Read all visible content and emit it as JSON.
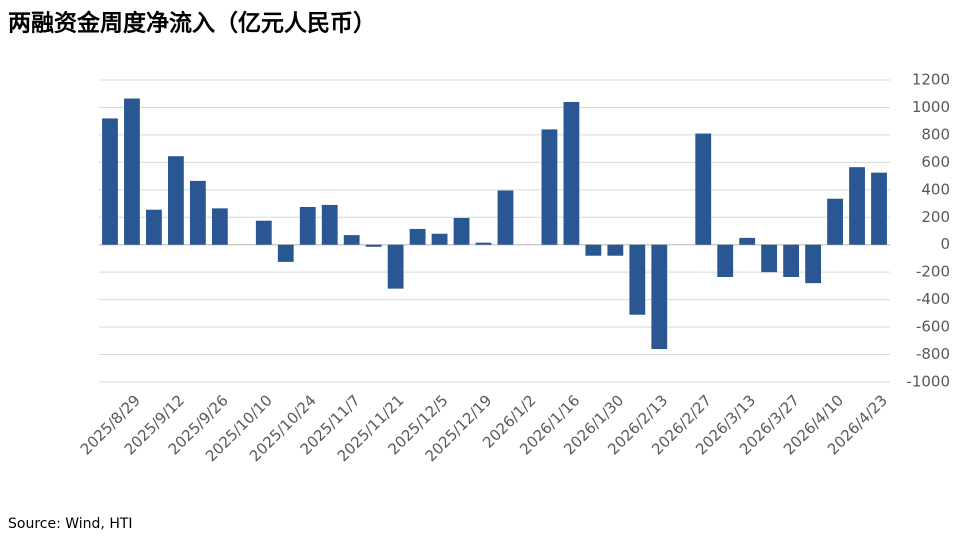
{
  "chart_data": {
    "type": "bar",
    "title": "两融资金周度净流入（亿元人民币）",
    "source": "Source: Wind, HTI",
    "categories": [
      null,
      "2025/8/29",
      null,
      "2025/9/12",
      null,
      "2025/9/26",
      null,
      "2025/10/10",
      null,
      "2025/10/24",
      null,
      "2025/11/7",
      null,
      "2025/11/21",
      null,
      "2025/12/5",
      null,
      "2025/12/19",
      null,
      "2026/1/2",
      null,
      "2026/1/16",
      null,
      "2026/1/30",
      null,
      "2026/2/13",
      null,
      "2026/2/27",
      null,
      "2026/3/13",
      null,
      "2026/3/27",
      null,
      "2026/4/10",
      null,
      "2026/4/23"
    ],
    "values": [
      920,
      1065,
      255,
      645,
      465,
      265,
      null,
      175,
      -125,
      275,
      290,
      70,
      -15,
      -320,
      115,
      80,
      195,
      15,
      395,
      null,
      840,
      1040,
      -80,
      -80,
      -510,
      -760,
      null,
      810,
      -235,
      50,
      -200,
      -235,
      -280,
      335,
      565,
      525
    ],
    "color": "#2a5791",
    "ylim": [
      -1000,
      1200
    ],
    "yticks": [
      -1000,
      -800,
      -600,
      -400,
      -200,
      0,
      200,
      400,
      600,
      800,
      1000,
      1200
    ],
    "grid": true
  }
}
